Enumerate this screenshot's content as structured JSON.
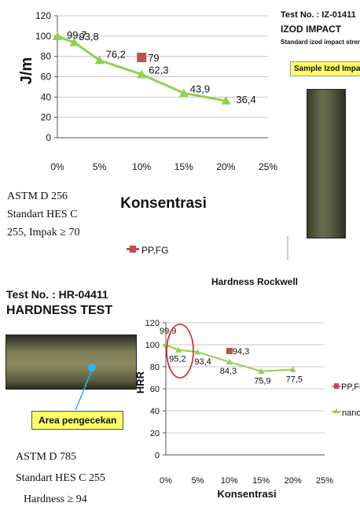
{
  "izod": {
    "test_no": "Test No. :   IZ-01411",
    "title": "IZOD IMPACT",
    "subtitle": "Standard izod impact strength",
    "sample_label": "Sample  Izod Impact",
    "standard_lines": [
      "ASTM D 256",
      "Standart HES C",
      "255, Impak ≥ 70"
    ],
    "legend_pp": "PP,FG"
  },
  "hardness": {
    "test_no": "Test No. :    HR-04411",
    "title": "HARDNESS TEST",
    "area_label": "Area pengecekan",
    "standard_lines": [
      "ASTM D 785",
      "Standart HES C 255",
      "Hardness ≥ 94"
    ],
    "legend_pp": "PP,FG",
    "legend_nano": "nano"
  },
  "chart_data": [
    {
      "type": "line",
      "title": "",
      "xlabel": "Konsentrasi",
      "ylabel": "J/m",
      "x_categories": [
        "0%",
        "5%",
        "10%",
        "15%",
        "20%",
        "25%"
      ],
      "y_ticks": [
        "0",
        "20",
        "40",
        "60",
        "80",
        "100",
        "120"
      ],
      "ylim": [
        0,
        120
      ],
      "xlim": [
        0,
        25
      ],
      "grid": true,
      "series": [
        {
          "name": "",
          "color": "#92d050",
          "x": [
            0,
            2,
            5,
            10,
            15,
            20
          ],
          "values": [
            99.7,
            93.8,
            76.2,
            62.3,
            43.9,
            36.4
          ],
          "labels": [
            "99,7",
            "93,8",
            "76,2",
            "62,3",
            "43,9",
            "36,4"
          ]
        },
        {
          "name": "PP,FG",
          "color": "#c0504d",
          "x": [
            10
          ],
          "values": [
            79
          ],
          "labels": [
            "79"
          ]
        }
      ]
    },
    {
      "type": "line",
      "title": "Hardness Rockwell",
      "xlabel": "Konsentrasi",
      "ylabel": "HRR",
      "x_categories": [
        "0%",
        "5%",
        "10%",
        "15%",
        "20%",
        "25%"
      ],
      "y_ticks": [
        "0",
        "20",
        "40",
        "60",
        "80",
        "100",
        "120"
      ],
      "ylim": [
        0,
        120
      ],
      "xlim": [
        0,
        25
      ],
      "grid": true,
      "series": [
        {
          "name": "nano",
          "color": "#92d050",
          "x": [
            0,
            2,
            5,
            10,
            15,
            20
          ],
          "values": [
            99.9,
            95.2,
            93.4,
            84.3,
            75.9,
            77.5
          ],
          "labels": [
            "99,9",
            "95,2",
            "93,4",
            "84,3",
            "75,9",
            "77,5"
          ]
        },
        {
          "name": "PP,FG",
          "color": "#c0504d",
          "x": [
            10
          ],
          "values": [
            94.3
          ],
          "labels": [
            "94,3"
          ]
        }
      ]
    }
  ]
}
